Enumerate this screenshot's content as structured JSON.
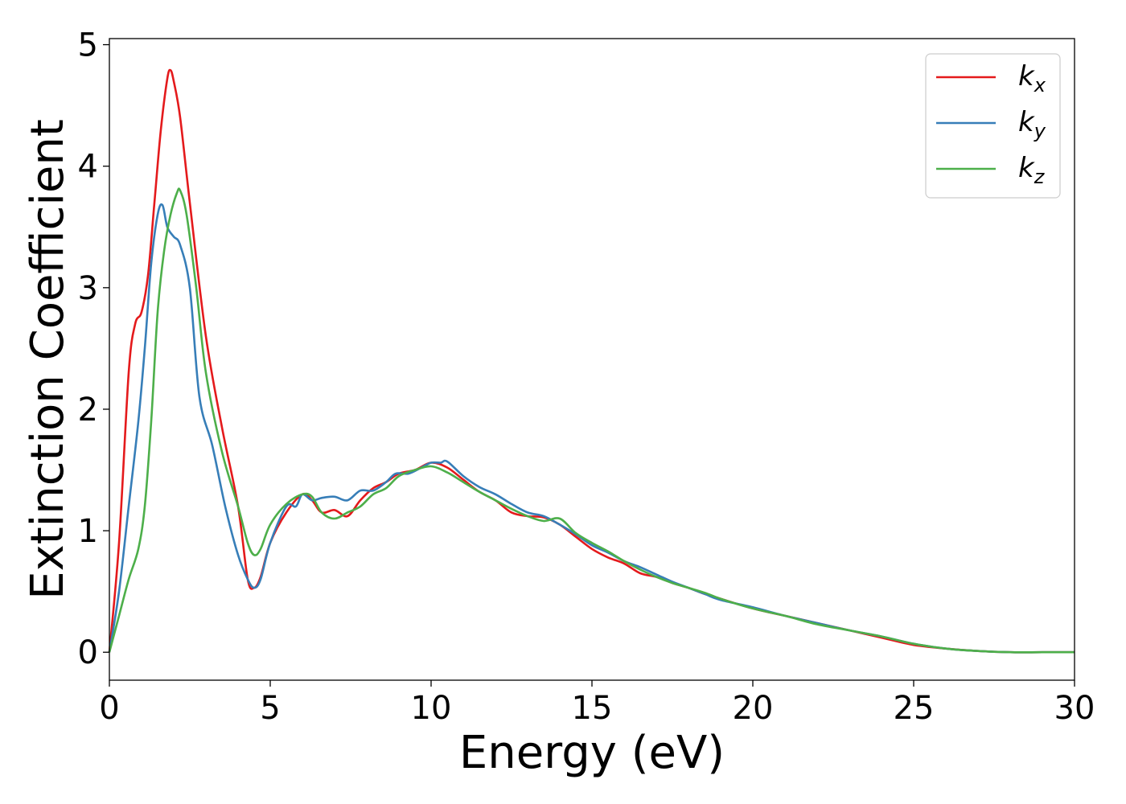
{
  "chart_data": {
    "type": "line",
    "title": "",
    "xlabel": "Energy (eV)",
    "ylabel": "Extinction Coefficient",
    "xlim": [
      0,
      30
    ],
    "ylim": [
      -0.23,
      5.05
    ],
    "xticks": [
      0,
      5,
      10,
      15,
      20,
      25,
      30
    ],
    "yticks": [
      0,
      1,
      2,
      3,
      4,
      5
    ],
    "grid": false,
    "legend_position": "top-right",
    "series": [
      {
        "name": "k",
        "subscript": "x",
        "color": "#e41a1c",
        "x": [
          0,
          0.3,
          0.6,
          0.8,
          1.0,
          1.2,
          1.4,
          1.6,
          1.8,
          1.9,
          2.0,
          2.2,
          2.5,
          3.0,
          3.5,
          4.0,
          4.3,
          4.5,
          4.7,
          5.0,
          5.5,
          6.0,
          6.3,
          6.6,
          7.0,
          7.4,
          7.8,
          8.2,
          8.6,
          9.0,
          9.5,
          10.0,
          10.5,
          11.0,
          11.5,
          12.0,
          12.5,
          13.0,
          13.5,
          14.0,
          14.5,
          15.0,
          15.5,
          16.0,
          16.5,
          17.0,
          17.5,
          18.0,
          18.5,
          19.0,
          20.0,
          21.0,
          22.0,
          23.0,
          24.0,
          25.0,
          26.0,
          27.0,
          28.0,
          29.0,
          30.0
        ],
        "y": [
          0.0,
          0.9,
          2.3,
          2.7,
          2.8,
          3.1,
          3.7,
          4.3,
          4.72,
          4.79,
          4.7,
          4.4,
          3.7,
          2.6,
          1.85,
          1.2,
          0.6,
          0.53,
          0.62,
          0.9,
          1.15,
          1.3,
          1.25,
          1.15,
          1.17,
          1.12,
          1.25,
          1.35,
          1.4,
          1.47,
          1.5,
          1.56,
          1.52,
          1.42,
          1.32,
          1.25,
          1.15,
          1.12,
          1.11,
          1.05,
          0.95,
          0.85,
          0.78,
          0.73,
          0.65,
          0.62,
          0.57,
          0.53,
          0.48,
          0.44,
          0.36,
          0.3,
          0.24,
          0.18,
          0.12,
          0.06,
          0.03,
          0.01,
          0.0,
          0.0,
          0.0
        ]
      },
      {
        "name": "k",
        "subscript": "y",
        "color": "#377eb8",
        "x": [
          0,
          0.3,
          0.6,
          0.9,
          1.1,
          1.3,
          1.5,
          1.65,
          1.8,
          2.0,
          2.2,
          2.5,
          2.8,
          3.2,
          3.6,
          4.0,
          4.3,
          4.5,
          4.7,
          5.0,
          5.5,
          5.8,
          6.0,
          6.3,
          6.6,
          7.0,
          7.4,
          7.8,
          8.2,
          8.6,
          8.9,
          9.3,
          9.7,
          10.0,
          10.3,
          10.5,
          11.0,
          11.5,
          12.0,
          12.5,
          13.0,
          13.5,
          14.0,
          14.5,
          15.0,
          15.5,
          16.0,
          16.5,
          17.0,
          17.5,
          18.0,
          18.5,
          19.0,
          20.0,
          21.0,
          22.0,
          23.0,
          24.0,
          25.0,
          26.0,
          27.0,
          28.0,
          29.0,
          30.0
        ],
        "y": [
          0.0,
          0.5,
          1.2,
          1.9,
          2.5,
          3.2,
          3.6,
          3.68,
          3.5,
          3.42,
          3.35,
          3.0,
          2.1,
          1.7,
          1.2,
          0.8,
          0.6,
          0.53,
          0.6,
          0.9,
          1.2,
          1.2,
          1.3,
          1.25,
          1.27,
          1.28,
          1.25,
          1.33,
          1.33,
          1.4,
          1.47,
          1.47,
          1.52,
          1.56,
          1.56,
          1.57,
          1.45,
          1.36,
          1.3,
          1.22,
          1.15,
          1.12,
          1.05,
          0.97,
          0.88,
          0.82,
          0.75,
          0.7,
          0.64,
          0.58,
          0.53,
          0.48,
          0.43,
          0.37,
          0.3,
          0.24,
          0.18,
          0.13,
          0.07,
          0.03,
          0.01,
          0.0,
          0.0,
          0.0
        ]
      },
      {
        "name": "k",
        "subscript": "z",
        "color": "#4daf4a",
        "x": [
          0,
          0.3,
          0.6,
          0.9,
          1.1,
          1.3,
          1.5,
          1.7,
          1.9,
          2.1,
          2.2,
          2.4,
          2.7,
          3.0,
          3.5,
          4.0,
          4.3,
          4.5,
          4.7,
          5.0,
          5.5,
          6.0,
          6.3,
          6.6,
          7.0,
          7.4,
          7.8,
          8.2,
          8.6,
          9.0,
          9.5,
          10.0,
          10.5,
          11.0,
          11.5,
          12.0,
          12.5,
          13.0,
          13.5,
          14.0,
          14.5,
          15.0,
          15.5,
          16.0,
          16.5,
          17.0,
          17.5,
          18.0,
          18.5,
          19.0,
          20.0,
          21.0,
          22.0,
          23.0,
          24.0,
          25.0,
          26.0,
          27.0,
          28.0,
          29.0,
          30.0
        ],
        "y": [
          0.0,
          0.3,
          0.6,
          0.85,
          1.2,
          1.9,
          2.8,
          3.3,
          3.6,
          3.78,
          3.8,
          3.6,
          3.0,
          2.3,
          1.65,
          1.2,
          0.9,
          0.8,
          0.85,
          1.05,
          1.22,
          1.3,
          1.28,
          1.15,
          1.1,
          1.15,
          1.2,
          1.3,
          1.35,
          1.45,
          1.5,
          1.53,
          1.48,
          1.4,
          1.32,
          1.25,
          1.18,
          1.12,
          1.08,
          1.1,
          0.98,
          0.9,
          0.83,
          0.75,
          0.68,
          0.62,
          0.57,
          0.53,
          0.49,
          0.44,
          0.36,
          0.3,
          0.23,
          0.18,
          0.13,
          0.07,
          0.03,
          0.01,
          0.0,
          0.0,
          0.0
        ]
      }
    ]
  }
}
